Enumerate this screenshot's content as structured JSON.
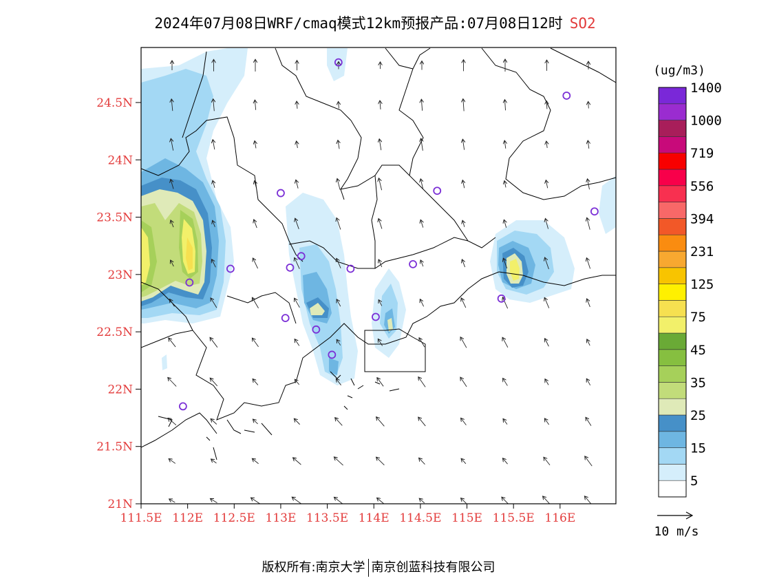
{
  "title": {
    "text": "2024年07月08日WRF/cmaq模式12km预报产品:07月08日12时",
    "pollutant": "SO2",
    "pollutant_color": "#e23a3a"
  },
  "map": {
    "lon_range": [
      111.5,
      116.6
    ],
    "lat_range": [
      21.0,
      24.98
    ],
    "lat_ticks": [
      {
        "v": 24.5,
        "label": "24.5N"
      },
      {
        "v": 24.0,
        "label": "24N"
      },
      {
        "v": 23.5,
        "label": "23.5N"
      },
      {
        "v": 23.0,
        "label": "23N"
      },
      {
        "v": 22.5,
        "label": "22.5N"
      },
      {
        "v": 22.0,
        "label": "22N"
      },
      {
        "v": 21.5,
        "label": "21.5N"
      },
      {
        "v": 21.0,
        "label": "21N"
      }
    ],
    "lon_ticks": [
      {
        "v": 111.5,
        "label": "111.5E"
      },
      {
        "v": 112.0,
        "label": "112E"
      },
      {
        "v": 112.5,
        "label": "112.5E"
      },
      {
        "v": 113.0,
        "label": "113E"
      },
      {
        "v": 113.5,
        "label": "113.5E"
      },
      {
        "v": 114.0,
        "label": "114E"
      },
      {
        "v": 114.5,
        "label": "114.5E"
      },
      {
        "v": 115.0,
        "label": "115E"
      },
      {
        "v": 115.5,
        "label": "115.5E"
      },
      {
        "v": 116.0,
        "label": "116E"
      }
    ],
    "stations": [
      [
        113.62,
        24.85
      ],
      [
        116.07,
        24.56
      ],
      [
        113.0,
        23.71
      ],
      [
        114.68,
        23.73
      ],
      [
        116.37,
        23.55
      ],
      [
        113.22,
        23.16
      ],
      [
        113.1,
        23.06
      ],
      [
        113.75,
        23.05
      ],
      [
        114.42,
        23.09
      ],
      [
        112.46,
        23.05
      ],
      [
        112.02,
        22.93
      ],
      [
        113.05,
        22.62
      ],
      [
        113.38,
        22.52
      ],
      [
        113.55,
        22.3
      ],
      [
        114.02,
        22.63
      ],
      [
        115.37,
        22.79
      ],
      [
        111.95,
        21.85
      ]
    ],
    "station_color": "#7b2fd6"
  },
  "legend": {
    "unit": "(ug/m3)",
    "colors": [
      "#ffffff",
      "#d5eefb",
      "#a3d8f4",
      "#6eb6e2",
      "#4690c8",
      "#dfeab8",
      "#c2dc7a",
      "#a6d05a",
      "#86bf40",
      "#6aaa36",
      "#f2f06a",
      "#f6e050",
      "#fff000",
      "#f8c400",
      "#f8a830",
      "#fa8c10",
      "#f25828",
      "#f86868",
      "#f83050",
      "#f8004a",
      "#f80000",
      "#c80a7a",
      "#a81e5a",
      "#9a2cd0",
      "#7a28d8"
    ],
    "labels": [
      "5",
      "15",
      "25",
      "35",
      "45",
      "75",
      "125",
      "231",
      "394",
      "556",
      "719",
      "1000",
      "1400"
    ]
  },
  "wind_reference": {
    "label": "10 m/s",
    "speed": 10
  },
  "footer": {
    "left": "版权所有:南京大学",
    "right": "南京创蓝科技有限公司"
  }
}
